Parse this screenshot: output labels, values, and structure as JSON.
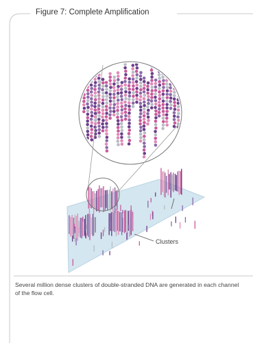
{
  "figure": {
    "title": "Figure 7: Complete Amplification",
    "callout": "Clusters",
    "caption": "Several million dense clusters of double-stranded DNA are generated in each channel of the flow cell."
  }
}
